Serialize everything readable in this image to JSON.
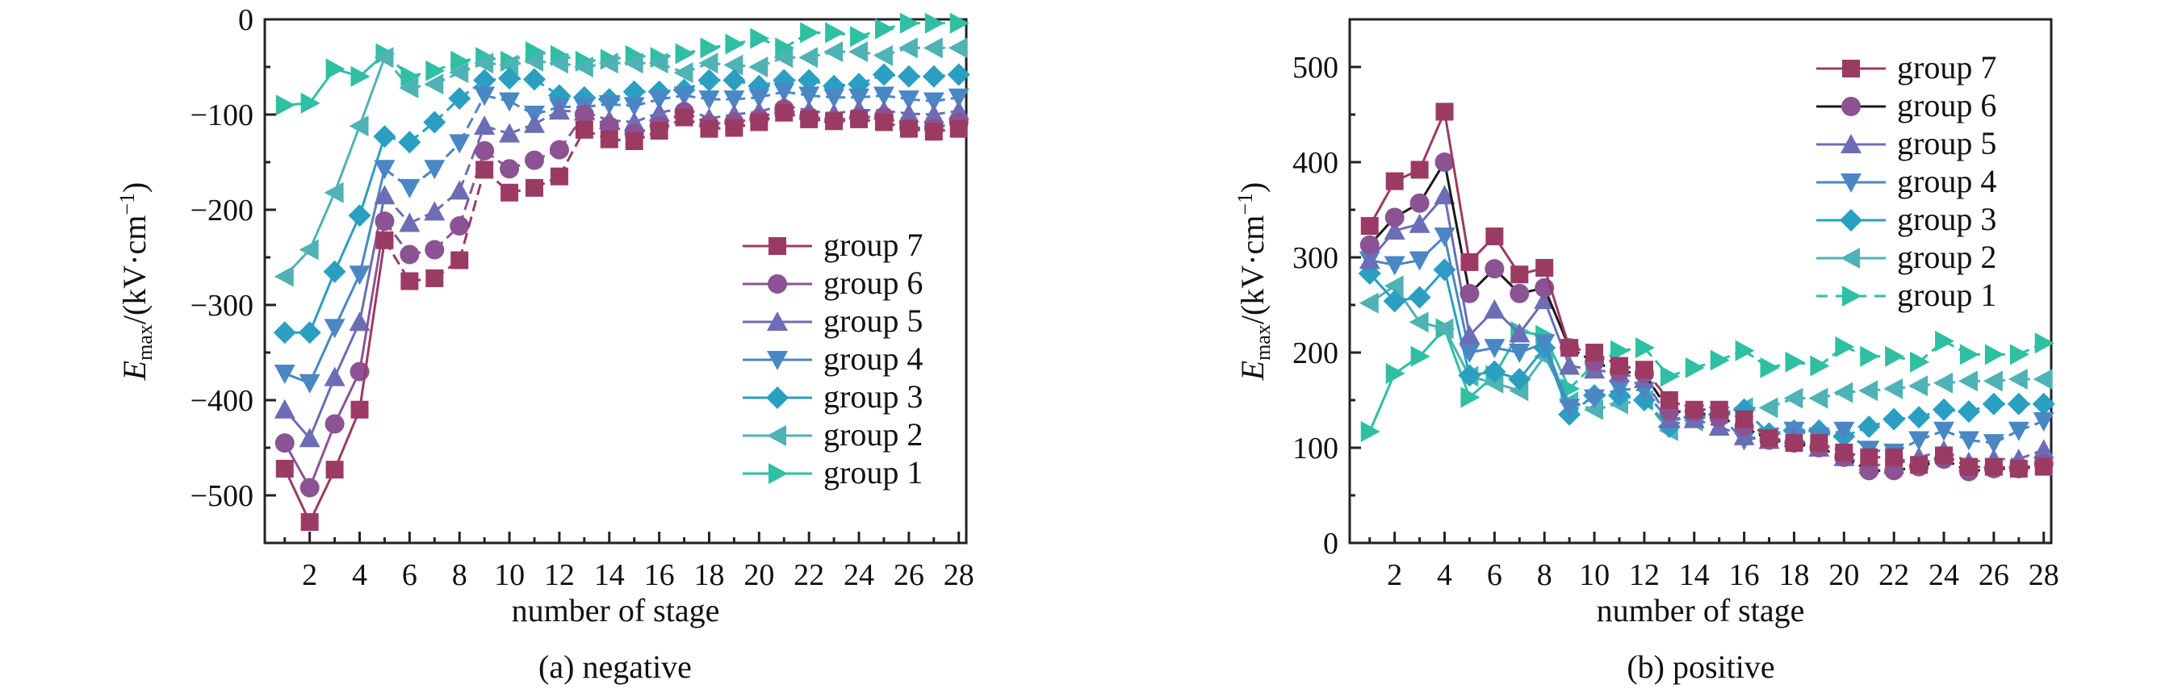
{
  "chart_data": [
    {
      "type": "line",
      "caption": "(a) negative",
      "xlabel": "number of stage",
      "ylabel_main": "E",
      "ylabel_sub": "max",
      "ylabel_unit": "/(kV·cm",
      "ylabel_sup": "−1",
      "ylabel_close": ")",
      "xlim": [
        0.2,
        28.3
      ],
      "ylim": [
        -550,
        0
      ],
      "xticks": [
        2,
        4,
        6,
        8,
        10,
        12,
        14,
        16,
        18,
        20,
        22,
        24,
        26,
        28
      ],
      "yticks": [
        0,
        -100,
        -200,
        -300,
        -400,
        -500
      ],
      "ytick_labels": [
        "0",
        "−100",
        "−200",
        "−300",
        "−400",
        "−500"
      ],
      "legend_position": "center-right",
      "x": [
        1,
        2,
        3,
        4,
        5,
        6,
        7,
        8,
        9,
        10,
        11,
        12,
        13,
        14,
        15,
        16,
        17,
        18,
        19,
        20,
        21,
        22,
        23,
        24,
        25,
        26,
        27,
        28
      ],
      "series": [
        {
          "name": "group 7",
          "marker": "square",
          "color": "#9b3b63",
          "line": "#9b3b63",
          "values": [
            -472,
            -528,
            -473,
            -410,
            -232,
            -275,
            -272,
            -253,
            -158,
            -182,
            -177,
            -165,
            -116,
            -126,
            -128,
            -117,
            -103,
            -115,
            -114,
            -108,
            -98,
            -105,
            -107,
            -105,
            -108,
            -115,
            -118,
            -115
          ]
        },
        {
          "name": "group 6",
          "marker": "circle",
          "color": "#8b5394",
          "line": "#8b5394",
          "values": [
            -445,
            -492,
            -425,
            -370,
            -212,
            -247,
            -242,
            -217,
            -138,
            -157,
            -148,
            -137,
            -100,
            -112,
            -120,
            -112,
            -97,
            -110,
            -108,
            -104,
            -94,
            -102,
            -106,
            -103,
            -102,
            -114,
            -114,
            -108
          ]
        },
        {
          "name": "group 5",
          "marker": "triangle-up",
          "color": "#6c6db5",
          "line": "#6c6db5",
          "values": [
            -410,
            -440,
            -376,
            -318,
            -185,
            -214,
            -202,
            -180,
            -112,
            -120,
            -110,
            -96,
            -97,
            -106,
            -108,
            -98,
            -93,
            -104,
            -100,
            -97,
            -90,
            -96,
            -99,
            -95,
            -96,
            -99,
            -100,
            -96
          ]
        },
        {
          "name": "group 4",
          "marker": "triangle-down",
          "color": "#4a87c4",
          "line": "#4a87c4",
          "values": [
            -372,
            -382,
            -324,
            -268,
            -157,
            -177,
            -157,
            -130,
            -80,
            -86,
            -100,
            -92,
            -92,
            -89,
            -91,
            -84,
            -80,
            -84,
            -84,
            -82,
            -76,
            -80,
            -82,
            -82,
            -80,
            -84,
            -86,
            -82
          ]
        },
        {
          "name": "group 3",
          "marker": "diamond",
          "color": "#2a9fc2",
          "line": "#2a9fc2",
          "values": [
            -329,
            -329,
            -265,
            -206,
            -123,
            -129,
            -108,
            -83,
            -64,
            -62,
            -63,
            -80,
            -82,
            -84,
            -76,
            -76,
            -74,
            -64,
            -64,
            -70,
            -64,
            -64,
            -70,
            -68,
            -58,
            -60,
            -60,
            -58
          ]
        },
        {
          "name": "group 2",
          "marker": "triangle-left",
          "color": "#4fb2b5",
          "line": "#4fb2b5",
          "values": [
            -270,
            -242,
            -182,
            -112,
            -40,
            -72,
            -68,
            -56,
            -46,
            -48,
            -44,
            -46,
            -50,
            -46,
            -46,
            -46,
            -56,
            -46,
            -48,
            -50,
            -40,
            -40,
            -34,
            -34,
            -38,
            -30,
            -30,
            -30
          ]
        },
        {
          "name": "group 1",
          "marker": "triangle-right",
          "color": "#2fbfa3",
          "line": "#2fbfa3",
          "values": [
            -90,
            -88,
            -52,
            -60,
            -36,
            -60,
            -54,
            -44,
            -40,
            -44,
            -34,
            -38,
            -44,
            -42,
            -38,
            -40,
            -36,
            -30,
            -26,
            -20,
            -30,
            -14,
            -14,
            -18,
            -10,
            -4,
            -4,
            -4
          ]
        }
      ]
    },
    {
      "type": "line",
      "caption": "(b) positive",
      "xlabel": "number of stage",
      "ylabel_main": "E",
      "ylabel_sub": "max",
      "ylabel_unit": "/(kV·cm",
      "ylabel_sup": "−1",
      "ylabel_close": ")",
      "xlim": [
        0.2,
        28.3
      ],
      "ylim": [
        0,
        550
      ],
      "xticks": [
        2,
        4,
        6,
        8,
        10,
        12,
        14,
        16,
        18,
        20,
        22,
        24,
        26,
        28
      ],
      "yticks": [
        0,
        100,
        200,
        300,
        400,
        500
      ],
      "ytick_labels": [
        "0",
        "100",
        "200",
        "300",
        "400",
        "500"
      ],
      "legend_position": "top-right",
      "x": [
        1,
        2,
        3,
        4,
        5,
        6,
        7,
        8,
        9,
        10,
        11,
        12,
        13,
        14,
        15,
        16,
        17,
        18,
        19,
        20,
        21,
        22,
        23,
        24,
        25,
        26,
        27,
        28
      ],
      "series": [
        {
          "name": "group 7",
          "marker": "square",
          "color": "#9b3b63",
          "line": "#9b3b63",
          "values": [
            333,
            380,
            392,
            453,
            295,
            322,
            282,
            289,
            205,
            200,
            186,
            182,
            150,
            140,
            140,
            130,
            110,
            105,
            105,
            95,
            90,
            90,
            82,
            92,
            80,
            80,
            78,
            80
          ]
        },
        {
          "name": "group 6",
          "marker": "circle",
          "color": "#8b5394",
          "line": "#1a1a1a",
          "values": [
            313,
            342,
            357,
            400,
            262,
            288,
            262,
            268,
            205,
            190,
            180,
            178,
            138,
            138,
            132,
            122,
            108,
            105,
            100,
            90,
            76,
            76,
            80,
            88,
            75,
            78,
            78,
            83
          ]
        },
        {
          "name": "group 5",
          "marker": "triangle-up",
          "color": "#6c6db5",
          "line": "#6c6db5",
          "values": [
            297,
            328,
            335,
            365,
            218,
            245,
            220,
            255,
            186,
            182,
            178,
            172,
            130,
            130,
            122,
            112,
            108,
            110,
            100,
            90,
            82,
            82,
            90,
            97,
            85,
            88,
            88,
            98
          ]
        },
        {
          "name": "group 4",
          "marker": "triangle-down",
          "color": "#4a87c4",
          "line": "#4a87c4",
          "values": [
            297,
            292,
            297,
            322,
            200,
            205,
            200,
            210,
            142,
            152,
            162,
            160,
            128,
            136,
            134,
            108,
            112,
            118,
            112,
            118,
            98,
            95,
            108,
            118,
            108,
            105,
            118,
            128
          ]
        },
        {
          "name": "group 3",
          "marker": "diamond",
          "color": "#2a9fc2",
          "line": "#2a9fc2",
          "values": [
            283,
            254,
            258,
            287,
            176,
            180,
            172,
            205,
            135,
            155,
            155,
            150,
            122,
            132,
            135,
            140,
            115,
            118,
            118,
            112,
            122,
            130,
            132,
            140,
            138,
            146,
            146,
            146
          ]
        },
        {
          "name": "group 2",
          "marker": "triangle-left",
          "color": "#4fb2b5",
          "line": "#4fb2b5",
          "values": [
            252,
            270,
            232,
            225,
            175,
            168,
            160,
            196,
            148,
            140,
            146,
            150,
            118,
            128,
            136,
            142,
            142,
            152,
            152,
            158,
            160,
            162,
            165,
            168,
            170,
            170,
            172,
            172
          ]
        },
        {
          "name": "group 1",
          "marker": "triangle-right",
          "color": "#2fbfa3",
          "line": "#2fbfa3",
          "values": [
            117,
            178,
            196,
            225,
            153,
            176,
            222,
            218,
            162,
            188,
            202,
            205,
            175,
            184,
            192,
            202,
            184,
            190,
            186,
            206,
            196,
            196,
            190,
            212,
            198,
            198,
            198,
            210
          ]
        }
      ]
    }
  ]
}
